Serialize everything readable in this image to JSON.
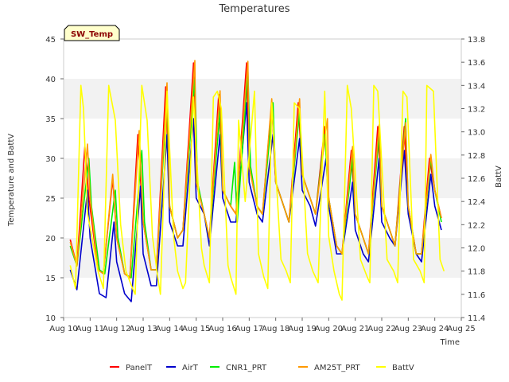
{
  "chart_data": {
    "type": "line",
    "title": "Temperatures",
    "xlabel": "Time",
    "ylabel": "Temperature and BattV",
    "y2label": "BattV",
    "badge": "SW_Temp",
    "xlim": [
      10,
      25
    ],
    "ylim": [
      10,
      45
    ],
    "y2lim": [
      11.4,
      13.8
    ],
    "x_ticks": [
      10,
      11,
      12,
      13,
      14,
      15,
      16,
      17,
      18,
      19,
      20,
      21,
      22,
      23,
      24,
      25
    ],
    "x_tick_labels": [
      "Aug 10",
      "Aug 11",
      "Aug 12",
      "Aug 13",
      "Aug 14",
      "Aug 15",
      "Aug 16",
      "Aug 17",
      "Aug 18",
      "Aug 19",
      "Aug 20",
      "Aug 21",
      "Aug 22",
      "Aug 23",
      "Aug 24",
      "Aug 25"
    ],
    "y_ticks": [
      10,
      15,
      20,
      25,
      30,
      35,
      40,
      45
    ],
    "y_tick_labels": [
      "10",
      "15",
      "20",
      "25",
      "30",
      "35",
      "40",
      "45"
    ],
    "y2_ticks": [
      11.4,
      11.6,
      11.8,
      12.0,
      12.2,
      12.4,
      12.6,
      12.8,
      13.0,
      13.2,
      13.4,
      13.6,
      13.8
    ],
    "y2_tick_labels": [
      "11.4",
      "11.6",
      "11.8",
      "12.0",
      "12.2",
      "12.4",
      "12.6",
      "12.8",
      "13.0",
      "13.2",
      "13.4",
      "13.6",
      "13.8"
    ],
    "grid": "horizontal-bands",
    "legend_position": "bottom",
    "series": [
      {
        "name": "PanelT",
        "color": "#ff0000",
        "axis": "left",
        "x": [
          10.25,
          10.5,
          10.8,
          10.95,
          11.3,
          11.5,
          11.85,
          12.0,
          12.3,
          12.5,
          12.8,
          13.0,
          13.3,
          13.5,
          13.85,
          14.0,
          14.3,
          14.5,
          14.9,
          15.0,
          15.3,
          15.5,
          15.85,
          16.0,
          16.3,
          16.5,
          16.9,
          17.0,
          17.3,
          17.5,
          17.85,
          18.0,
          18.3,
          18.5,
          18.85,
          19.0,
          19.3,
          19.5,
          19.85,
          20.0,
          20.3,
          20.5,
          20.85,
          21.0,
          21.3,
          21.5,
          21.85,
          22.0,
          22.3,
          22.5,
          22.85,
          23.0,
          23.3,
          23.5,
          23.8,
          24.0,
          24.25
        ],
        "y": [
          19.8,
          16.5,
          31.5,
          25,
          16,
          15.5,
          27.5,
          20,
          15.5,
          15,
          33,
          22,
          16,
          16,
          39,
          24,
          20,
          21,
          42,
          27,
          23,
          20,
          38,
          26,
          24,
          23,
          42,
          29,
          24,
          23,
          37,
          27,
          24,
          22,
          37,
          28,
          25,
          23,
          34,
          25,
          19,
          18,
          31,
          23,
          20,
          18,
          34,
          24,
          21,
          19,
          34,
          24,
          18,
          18,
          30,
          26,
          22.5
        ]
      },
      {
        "name": "AirT",
        "color": "#0000cc",
        "axis": "left",
        "x": [
          10.25,
          10.5,
          10.9,
          11.0,
          11.35,
          11.6,
          11.9,
          12.0,
          12.3,
          12.55,
          12.9,
          13.0,
          13.3,
          13.5,
          13.9,
          14.0,
          14.3,
          14.5,
          14.9,
          15.0,
          15.3,
          15.5,
          15.9,
          16.0,
          16.3,
          16.5,
          16.9,
          17.0,
          17.3,
          17.5,
          17.9,
          18.0,
          18.3,
          18.5,
          18.9,
          19.0,
          19.3,
          19.5,
          19.9,
          20.0,
          20.3,
          20.5,
          20.9,
          21.0,
          21.3,
          21.5,
          21.9,
          22.0,
          22.3,
          22.5,
          22.85,
          23.0,
          23.3,
          23.5,
          23.85,
          24.0,
          24.25
        ],
        "y": [
          16,
          13.5,
          26,
          20,
          13,
          12.5,
          22,
          17,
          13,
          12,
          26.5,
          18,
          14,
          14,
          33,
          22,
          19,
          19,
          35,
          25,
          23,
          19,
          33,
          25,
          22,
          22,
          37,
          27,
          23,
          22,
          33,
          27,
          24,
          22,
          32.5,
          26,
          24,
          21.5,
          30,
          24,
          18,
          18,
          27,
          21,
          18,
          17,
          30,
          22,
          20,
          19,
          31,
          23,
          18,
          17,
          28,
          24,
          21
        ]
      },
      {
        "name": "CNR1_PRT",
        "color": "#00ee00",
        "axis": "left",
        "x": [
          10.25,
          10.5,
          10.95,
          11.05,
          11.35,
          11.55,
          11.95,
          12.05,
          12.3,
          12.55,
          12.95,
          13.05,
          13.3,
          13.5,
          13.9,
          14.0,
          14.3,
          14.5,
          14.95,
          15.05,
          15.3,
          15.5,
          15.9,
          16.0,
          16.3,
          16.45,
          16.55,
          16.95,
          17.05,
          17.3,
          17.5,
          17.9,
          18.0,
          18.3,
          18.5,
          18.9,
          19.0,
          19.3,
          19.5,
          19.85,
          20.0,
          20.3,
          20.5,
          20.9,
          21.0,
          21.3,
          21.5,
          21.9,
          22.0,
          22.3,
          22.5,
          22.9,
          23.0,
          23.3,
          23.5,
          23.85,
          24.0,
          24.25
        ],
        "y": [
          19,
          16.5,
          30,
          24,
          16,
          15.5,
          26,
          20,
          15.5,
          15,
          31,
          22,
          16,
          16,
          38,
          24,
          20,
          21,
          40,
          27,
          23,
          20,
          36,
          26,
          24,
          29.5,
          22,
          41,
          29,
          24,
          23,
          37,
          27,
          24,
          22,
          36,
          28,
          25,
          23,
          33,
          25,
          19,
          18,
          30,
          23,
          20,
          18,
          33,
          24,
          21,
          19,
          35,
          24,
          18,
          18,
          30,
          26,
          22
        ]
      },
      {
        "name": "AM25T_PRT",
        "color": "#ff9900",
        "axis": "left",
        "x": [
          10.25,
          10.5,
          10.9,
          11.0,
          11.3,
          11.5,
          11.85,
          12.0,
          12.3,
          12.5,
          12.85,
          13.0,
          13.3,
          13.5,
          13.9,
          14.0,
          14.3,
          14.5,
          14.95,
          15.0,
          15.3,
          15.5,
          15.9,
          16.0,
          16.3,
          16.5,
          16.95,
          17.0,
          17.3,
          17.5,
          17.85,
          18.0,
          18.3,
          18.5,
          18.9,
          19.0,
          19.3,
          19.5,
          19.95,
          20.0,
          20.3,
          20.5,
          20.9,
          21.0,
          21.3,
          21.5,
          21.9,
          22.0,
          22.3,
          22.5,
          22.9,
          23.0,
          23.3,
          23.5,
          23.85,
          24.0,
          24.25
        ],
        "y": [
          19.5,
          16.5,
          31.8,
          25,
          16,
          15.5,
          28,
          20,
          15.5,
          15,
          33.5,
          22,
          16,
          16,
          39.5,
          24,
          20,
          21,
          42.3,
          27,
          23,
          20,
          38.5,
          26,
          24,
          23,
          42.2,
          29,
          24,
          23,
          37.5,
          27,
          24,
          22,
          37.5,
          28,
          25,
          23,
          35,
          25,
          19,
          18,
          31.5,
          23,
          20,
          18,
          34.2,
          24,
          21,
          19,
          34.5,
          24,
          18,
          18,
          30.5,
          26,
          22.5
        ]
      },
      {
        "name": "BattV",
        "color": "#ffff00",
        "axis": "right",
        "x": [
          10.25,
          10.45,
          10.65,
          10.75,
          10.9,
          11.3,
          11.5,
          11.7,
          11.95,
          12.15,
          12.35,
          12.6,
          12.7,
          12.95,
          13.15,
          13.35,
          13.55,
          13.65,
          13.9,
          14.15,
          14.3,
          14.5,
          14.6,
          14.9,
          15.2,
          15.3,
          15.5,
          15.65,
          15.8,
          15.95,
          16.2,
          16.3,
          16.5,
          16.6,
          16.85,
          17.2,
          17.35,
          17.55,
          17.7,
          17.85,
          18.2,
          18.4,
          18.55,
          18.7,
          18.9,
          19.2,
          19.4,
          19.6,
          19.85,
          20.0,
          20.2,
          20.4,
          20.5,
          20.7,
          20.85,
          21.2,
          21.45,
          21.55,
          21.7,
          21.85,
          22.2,
          22.45,
          22.6,
          22.8,
          22.95,
          23.2,
          23.45,
          23.6,
          23.7,
          23.95,
          24.2,
          24.35
        ],
        "y": [
          11.85,
          11.65,
          13.4,
          13.2,
          12.3,
          11.8,
          11.65,
          13.4,
          13.1,
          12.2,
          11.8,
          11.65,
          11.6,
          13.4,
          13.1,
          12.1,
          11.75,
          11.6,
          13.35,
          12.1,
          11.8,
          11.65,
          11.7,
          13.3,
          12.0,
          11.85,
          11.7,
          13.3,
          13.35,
          13.2,
          11.85,
          11.75,
          11.6,
          13.1,
          12.4,
          13.35,
          11.95,
          11.75,
          11.65,
          13.25,
          11.9,
          11.8,
          11.7,
          13.25,
          13.2,
          11.95,
          11.8,
          11.7,
          13.35,
          12.1,
          11.8,
          11.6,
          11.55,
          13.4,
          13.2,
          11.9,
          11.75,
          11.7,
          13.4,
          13.35,
          11.9,
          11.8,
          11.7,
          13.35,
          13.3,
          11.9,
          11.8,
          11.7,
          13.4,
          13.35,
          11.9,
          11.8
        ]
      }
    ]
  }
}
